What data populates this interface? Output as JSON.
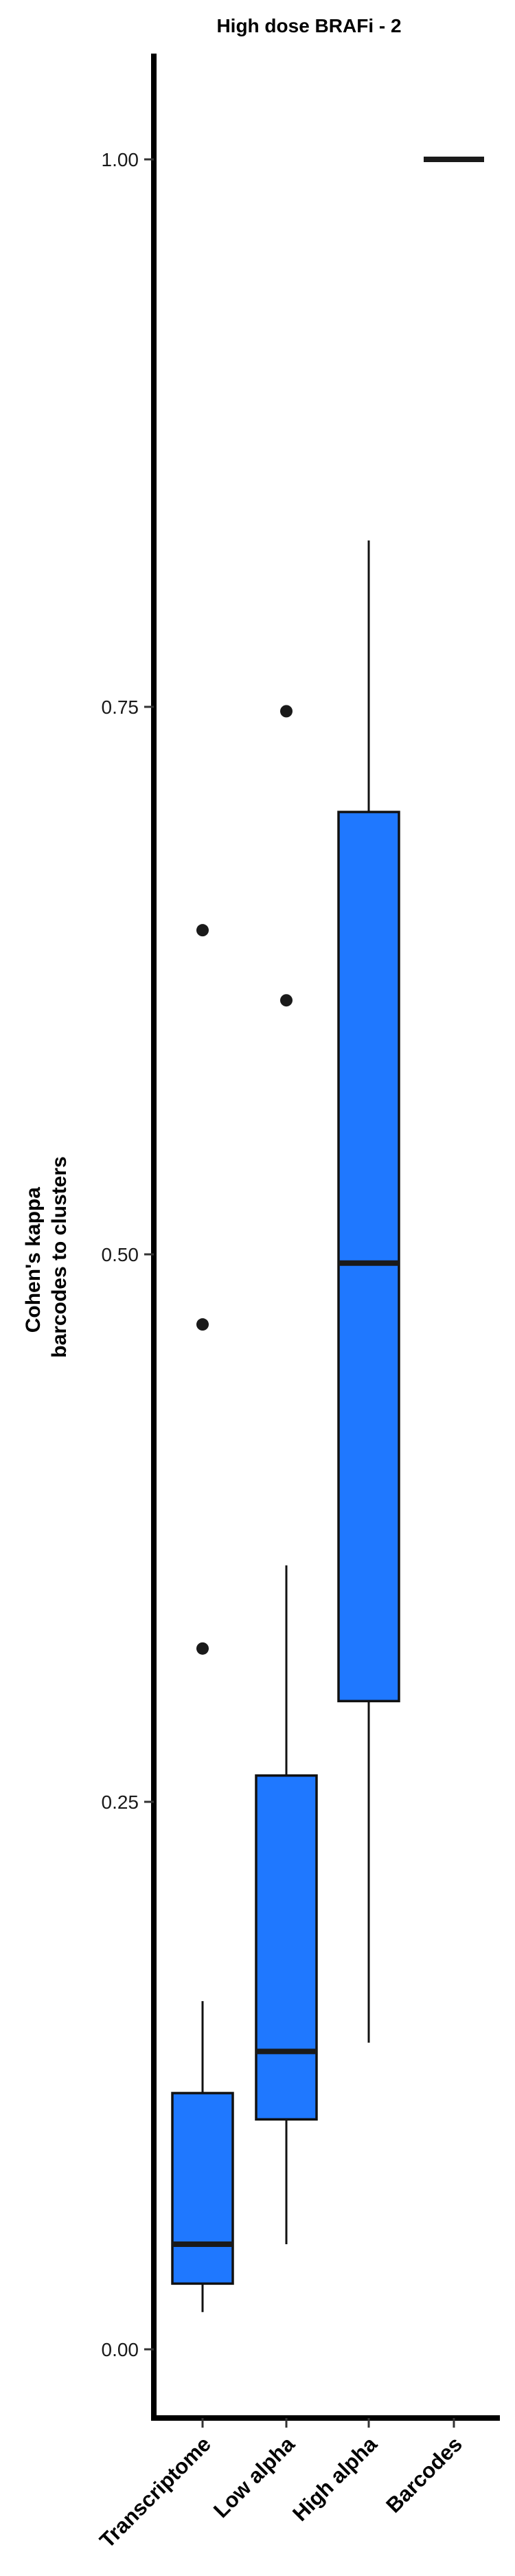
{
  "chart_data": {
    "type": "box",
    "title": "High dose BRAFi - 2",
    "ylabel_lines": [
      "Cohen's kappa",
      "barcodes to clusters"
    ],
    "xlabel": "",
    "ylim": [
      -0.03,
      1.05
    ],
    "yticks": [
      0.0,
      0.25,
      0.5,
      0.75,
      1.0
    ],
    "ytick_labels": [
      "0.00",
      "0.25",
      "0.50",
      "0.75",
      "1.00"
    ],
    "grid": false,
    "legend": "none",
    "box_color": "#1f78ff",
    "edge_color": "#111111",
    "categories": [
      "Transcriptome",
      "Low alpha",
      "High alpha",
      "Barcodes"
    ],
    "boxes": [
      {
        "label": "Transcriptome",
        "whisker_low": 0.017,
        "q1": 0.03,
        "median": 0.048,
        "q3": 0.117,
        "whisker_high": 0.159,
        "outliers": [
          0.32,
          0.468,
          0.648
        ]
      },
      {
        "label": "Low alpha",
        "whisker_low": 0.048,
        "q1": 0.105,
        "median": 0.136,
        "q3": 0.262,
        "whisker_high": 0.358,
        "outliers": [
          0.616,
          0.748
        ]
      },
      {
        "label": "High alpha",
        "whisker_low": 0.14,
        "q1": 0.296,
        "median": 0.496,
        "q3": 0.702,
        "whisker_high": 0.826,
        "outliers": []
      },
      {
        "label": "Barcodes",
        "whisker_low": 1.0,
        "q1": 1.0,
        "median": 1.0,
        "q3": 1.0,
        "whisker_high": 1.0,
        "outliers": []
      }
    ]
  }
}
